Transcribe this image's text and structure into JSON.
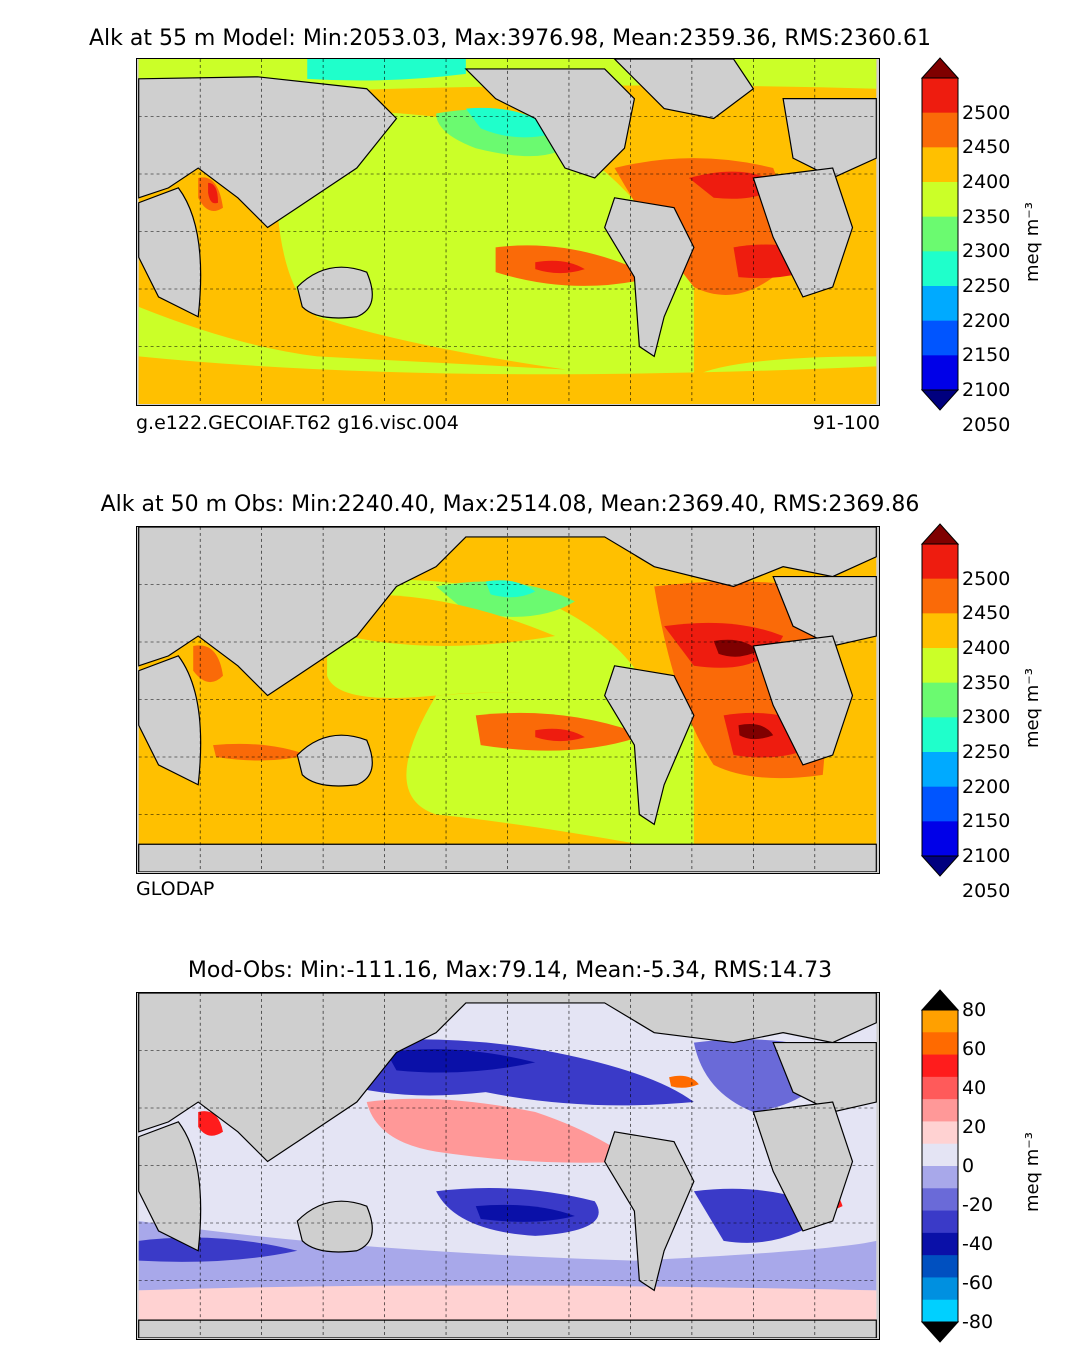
{
  "panels": [
    {
      "title": "Alk at 55 m Model: Min:2053.03, Max:3976.98, Mean:2359.36, RMS:2360.61",
      "subtitle_left": "g.e122.GECOIAF.T62 g16.visc.004",
      "subtitle_right": "91-100",
      "colorbar": {
        "ticks": [
          "2500",
          "2450",
          "2400",
          "2350",
          "2300",
          "2250",
          "2200",
          "2150",
          "2100",
          "2050"
        ],
        "unit": "meq m⁻³",
        "colors": [
          "#7f0000",
          "#ee1c0f",
          "#fa6a08",
          "#ffc000",
          "#cbff28",
          "#6bfa70",
          "#1fffcb",
          "#00aaff",
          "#0055ff",
          "#0000e8",
          "#00007f"
        ]
      }
    },
    {
      "title": "Alk at 50 m Obs: Min:2240.40, Max:2514.08, Mean:2369.40, RMS:2369.86",
      "subtitle_left": "GLODAP",
      "subtitle_right": "",
      "colorbar": {
        "ticks": [
          "2500",
          "2450",
          "2400",
          "2350",
          "2300",
          "2250",
          "2200",
          "2150",
          "2100",
          "2050"
        ],
        "unit": "meq m⁻³",
        "colors": [
          "#7f0000",
          "#ee1c0f",
          "#fa6a08",
          "#ffc000",
          "#cbff28",
          "#6bfa70",
          "#1fffcb",
          "#00aaff",
          "#0055ff",
          "#0000e8",
          "#00007f"
        ]
      }
    },
    {
      "title": "Mod-Obs: Min:-111.16, Max:79.14, Mean:-5.34, RMS:14.73",
      "subtitle_left": "",
      "subtitle_right": "",
      "colorbar": {
        "ticks": [
          "80",
          "60",
          "40",
          "20",
          "0",
          "-20",
          "-40",
          "-60",
          "-80"
        ],
        "unit": "meq m⁻³",
        "colors": [
          "#ffff00",
          "#ffa000",
          "#ff6a00",
          "#ff1c1c",
          "#ff5a5a",
          "#ff9898",
          "#ffd2d2",
          "#e4e4f4",
          "#a8a8ea",
          "#6a6ad8",
          "#3a3ac8",
          "#0a10a8",
          "#0050c0",
          "#0090e0",
          "#00d0ff",
          "#00ffff"
        ]
      }
    }
  ],
  "colors": {
    "land": "#cfcfcf",
    "grid": "#000000"
  }
}
